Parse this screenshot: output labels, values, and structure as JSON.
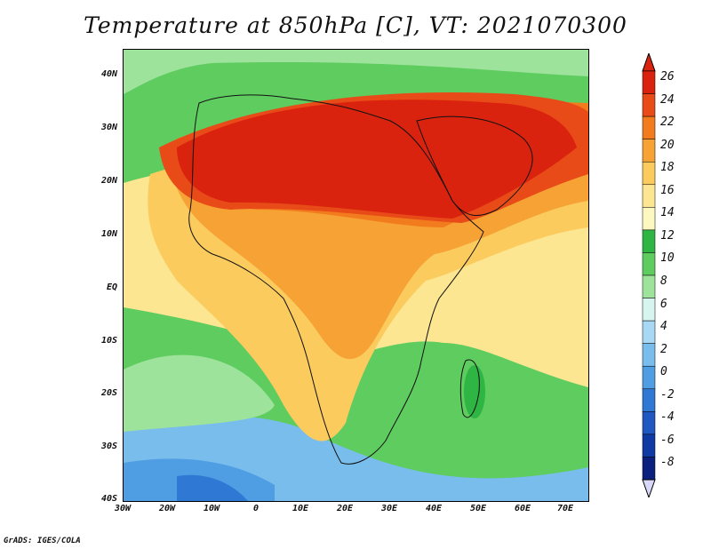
{
  "title": "Temperature at 850hPa [C], VT: 2021070300",
  "credit": "GrADS: IGES/COLA",
  "lat_labels": [
    "40N",
    "30N",
    "20N",
    "10N",
    "EQ",
    "10S",
    "20S",
    "30S",
    "40S"
  ],
  "lon_labels": [
    "30W",
    "20W",
    "10W",
    "0",
    "10E",
    "20E",
    "30E",
    "40E",
    "50E",
    "60E",
    "70E"
  ],
  "colorbar": {
    "labels": [
      "26",
      "24",
      "22",
      "20",
      "18",
      "16",
      "14",
      "12",
      "10",
      "8",
      "6",
      "4",
      "2",
      "0",
      "-2",
      "-4",
      "-6",
      "-8"
    ],
    "colors": [
      "#d9230f",
      "#e84b17",
      "#f27c1d",
      "#f6a235",
      "#fbcb5e",
      "#fde691",
      "#fdf8c0",
      "#2fb544",
      "#5fcc60",
      "#9de39c",
      "#d6f5ef",
      "#a7d8f4",
      "#78bdeb",
      "#4f9de2",
      "#2f78d3",
      "#1e58c0",
      "#0f3aa3",
      "#0a1f7e"
    ]
  },
  "map": {
    "ocean_color": "#5fcc60",
    "land_outline": "#111111"
  }
}
